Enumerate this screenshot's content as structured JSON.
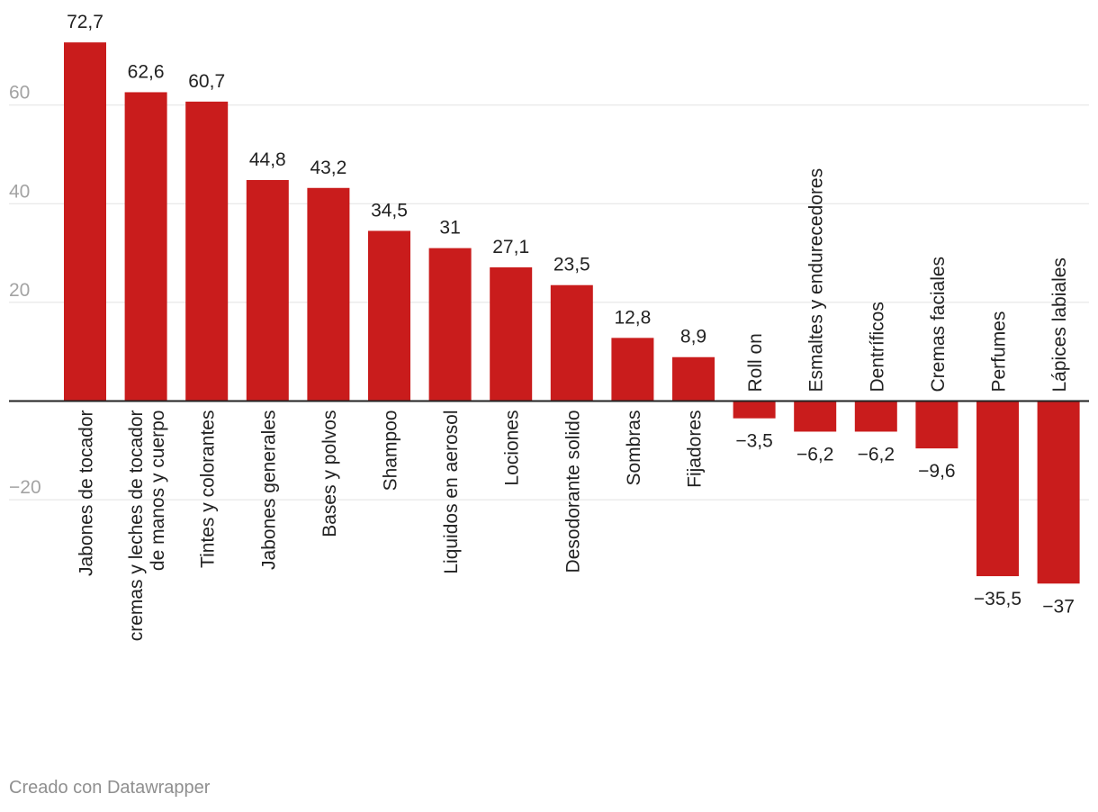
{
  "chart_data": {
    "type": "bar",
    "categories": [
      "Jabones de tocador",
      "cremas y leches de tocador de manos y cuerpo",
      "Tintes y colorantes",
      "Jabones generales",
      "Bases y polvos",
      "Shampoo",
      "Liquidos en aerosol",
      "Lociones",
      "Desodorante solido",
      "Sombras",
      "Fijadores",
      "Roll on",
      "Esmaltes y endurecedores",
      "Dentríficos",
      "Cremas faciales",
      "Perfumes",
      "Lápices labiales"
    ],
    "category_lines": [
      [
        "Jabones de tocador"
      ],
      [
        "cremas y leches de tocador",
        "de manos y cuerpo"
      ],
      [
        "Tintes y colorantes"
      ],
      [
        "Jabones generales"
      ],
      [
        "Bases y polvos"
      ],
      [
        "Shampoo"
      ],
      [
        "Liquidos en aerosol"
      ],
      [
        "Lociones"
      ],
      [
        "Desodorante solido"
      ],
      [
        "Sombras"
      ],
      [
        "Fijadores"
      ],
      [
        "Roll on"
      ],
      [
        "Esmaltes y endurecedores"
      ],
      [
        "Dentríficos"
      ],
      [
        "Cremas faciales"
      ],
      [
        "Perfumes"
      ],
      [
        "Lápices labiales"
      ]
    ],
    "values": [
      72.7,
      62.6,
      60.7,
      44.8,
      43.2,
      34.5,
      31,
      27.1,
      23.5,
      12.8,
      8.9,
      -3.5,
      -6.2,
      -6.2,
      -9.6,
      -35.5,
      -37
    ],
    "value_labels": [
      "72,7",
      "62,6",
      "60,7",
      "44,8",
      "43,2",
      "34,5",
      "31",
      "27,1",
      "23,5",
      "12,8",
      "8,9",
      "−3,5",
      "−6,2",
      "−6,2",
      "−9,6",
      "−35,5",
      "−37"
    ],
    "y_ticks": [
      -20,
      20,
      40,
      60
    ],
    "y_tick_labels": [
      "−20",
      "20",
      "40",
      "60"
    ],
    "ylim": [
      -37,
      72.7
    ],
    "grid": true,
    "bar_color": "#c91c1c",
    "title": "",
    "xlabel": "",
    "ylabel": ""
  },
  "footer": {
    "credit": "Creado con Datawrapper"
  }
}
